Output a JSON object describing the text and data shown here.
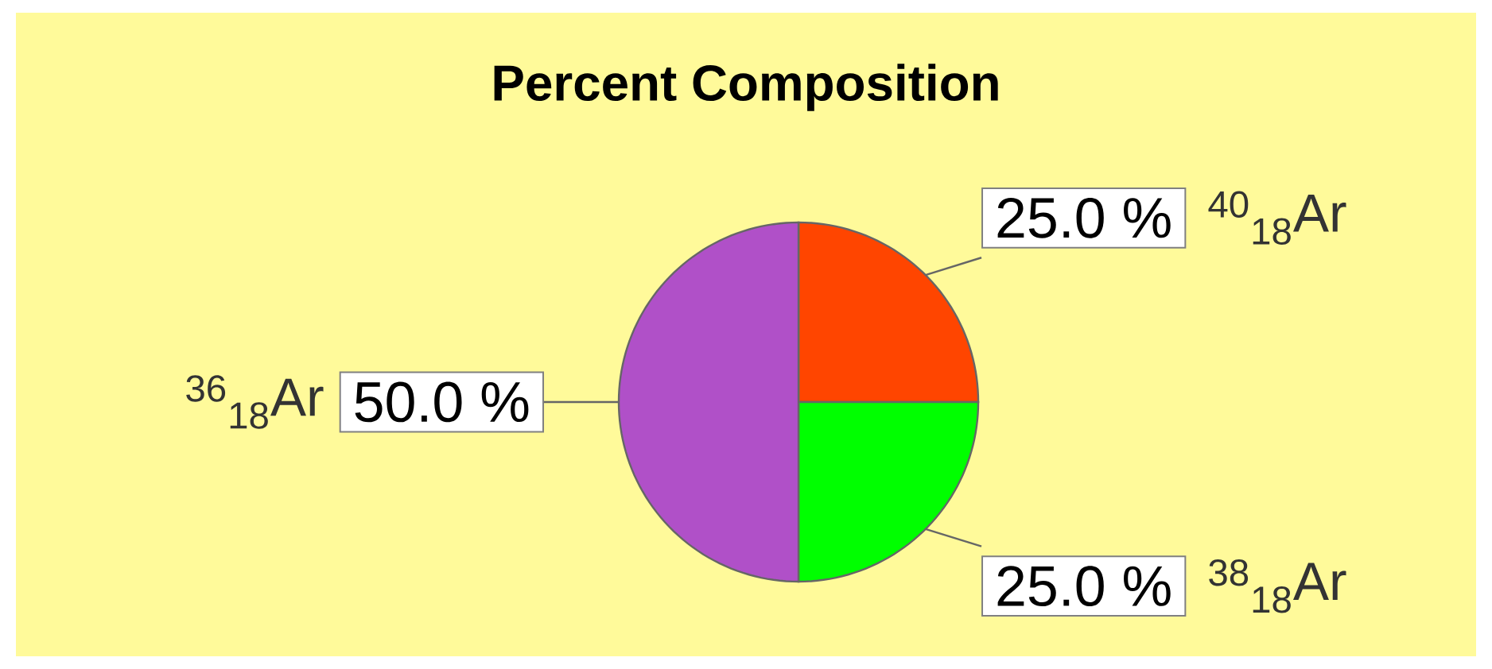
{
  "chart_data": {
    "type": "pie",
    "title": "Percent Composition",
    "categories": [
      "$^{40}$$_{18}$Ar",
      "$^{38}$$_{18}$Ar",
      "$^{36}$$_{18}$Ar"
    ],
    "values": [
      25,
      25,
      50
    ],
    "value_labels": [
      "25.0 %",
      "25.0 %",
      "50.0 %"
    ],
    "colors": [
      "#ff4500",
      "#00ff00",
      "#b050c8"
    ]
  }
}
